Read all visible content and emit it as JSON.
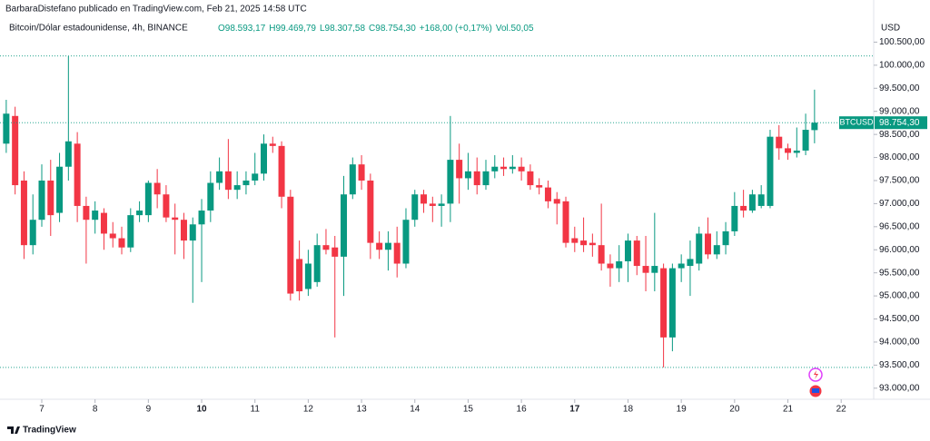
{
  "chart_data": {
    "type": "candlestick",
    "publisher_line": "BarbaraDistefano publicado en TradingView.com, Feb 21, 2025 14:58 UTC",
    "instrument": "Bitcoin/Dólar estadounidense, 4h, BINANCE",
    "ohlc_legend": {
      "open": "O98.593,17",
      "high": "H99.469,79",
      "low": "L98.307,58",
      "close": "C98.754,30",
      "change": "+168,00 (+0,17%)",
      "volume": "Vol.50,05"
    },
    "currency": "USD",
    "symbol": "BTCUSD",
    "last_price_label": "98.754,30",
    "brand": "TradingView",
    "up_color": "#089981",
    "down_color": "#f23645",
    "open": [
      98300,
      98900,
      97500,
      96100,
      96650,
      97500,
      96800,
      97800,
      98300,
      96950,
      96650,
      96800,
      96350,
      96250,
      96050,
      96750,
      96750,
      97450,
      97200,
      96700,
      96650,
      96200,
      96550,
      96850,
      97450,
      97700,
      97300,
      97400,
      97500,
      97650,
      98300,
      98250,
      97150,
      95800,
      95150,
      95300,
      96100,
      96050,
      95850,
      97200,
      97850,
      97500,
      96150,
      96000,
      96150,
      95700,
      96650,
      97200,
      97000,
      96950,
      97000,
      97950,
      97550,
      97700,
      97400,
      97700,
      97800,
      97750,
      97800,
      97700,
      97400,
      97350,
      97100,
      97050,
      96250,
      96200,
      96150,
      96100,
      95700,
      95600,
      95750,
      96200,
      95650,
      95500,
      95600,
      94100,
      95600,
      95650,
      95700,
      96350,
      95900,
      96100,
      96400,
      96950,
      96850,
      96950,
      96950,
      98450,
      98200,
      98100,
      98150,
      98593.17
    ],
    "high": [
      99250,
      99100,
      97700,
      97200,
      97850,
      97950,
      98100,
      100200,
      98550,
      97150,
      97050,
      96900,
      96600,
      96500,
      96900,
      97050,
      97500,
      97750,
      97400,
      97000,
      96800,
      96700,
      97100,
      97700,
      98000,
      98400,
      97700,
      97700,
      98100,
      98500,
      98450,
      98350,
      97300,
      96200,
      96000,
      96350,
      96450,
      96300,
      97600,
      98000,
      98050,
      97650,
      96400,
      96400,
      96500,
      96900,
      97300,
      97300,
      97150,
      97200,
      98900,
      98300,
      98100,
      98000,
      97950,
      98050,
      98000,
      98050,
      98000,
      97850,
      97550,
      97500,
      97250,
      97150,
      96500,
      96700,
      96350,
      97000,
      95900,
      96100,
      96350,
      96300,
      96300,
      96800,
      95700,
      95700,
      95900,
      96200,
      96500,
      96700,
      96400,
      96600,
      97250,
      97300,
      97300,
      97400,
      98600,
      98700,
      98300,
      98650,
      98950,
      99469.79
    ],
    "low": [
      98100,
      97200,
      95800,
      95900,
      96500,
      96300,
      96600,
      97500,
      96600,
      95700,
      96350,
      96000,
      96050,
      95900,
      95950,
      96600,
      96600,
      96900,
      96600,
      95900,
      95800,
      94850,
      95300,
      96600,
      97300,
      97100,
      97100,
      97200,
      97400,
      97500,
      98100,
      96900,
      94900,
      94900,
      95000,
      95200,
      95900,
      94100,
      95000,
      97100,
      97300,
      95800,
      95800,
      95550,
      95400,
      95600,
      96500,
      96800,
      96600,
      96500,
      96600,
      97000,
      97300,
      97200,
      97300,
      97550,
      97600,
      97650,
      97500,
      97300,
      97200,
      96900,
      96550,
      96050,
      95950,
      95950,
      95850,
      95550,
      95200,
      95300,
      95300,
      95450,
      95100,
      95100,
      93450,
      93800,
      95300,
      95000,
      95550,
      95800,
      95800,
      95900,
      96300,
      96700,
      96800,
      96900,
      96900,
      97950,
      97950,
      98000,
      98050,
      98307.58
    ],
    "close": [
      98950,
      97400,
      96100,
      96650,
      97500,
      96750,
      97800,
      98350,
      96950,
      96650,
      96850,
      96350,
      96250,
      96050,
      96750,
      96850,
      97450,
      97200,
      96700,
      96650,
      96200,
      96550,
      96850,
      97450,
      97700,
      97300,
      97400,
      97500,
      97650,
      98300,
      98250,
      97150,
      95050,
      95100,
      95700,
      96100,
      96000,
      95850,
      97200,
      97850,
      97500,
      96150,
      96000,
      96150,
      95700,
      96650,
      97200,
      97000,
      96950,
      97000,
      97950,
      97550,
      97700,
      97400,
      97700,
      97800,
      97750,
      97800,
      97700,
      97400,
      97350,
      97050,
      97000,
      96150,
      96150,
      96100,
      96100,
      95700,
      95600,
      95750,
      96200,
      95650,
      95500,
      95650,
      94100,
      95600,
      95700,
      95800,
      96350,
      95900,
      96100,
      96400,
      96950,
      96850,
      97200,
      97200,
      98450,
      98200,
      98100,
      98150,
      98600,
      98754.3
    ],
    "ylim": [
      92760,
      101020
    ],
    "yticks": [
      {
        "value": 93000,
        "label": "93.000,00"
      },
      {
        "value": 93500,
        "label": "93.500,00"
      },
      {
        "value": 94000,
        "label": "94.000,00"
      },
      {
        "value": 94500,
        "label": "94.500,00"
      },
      {
        "value": 95000,
        "label": "95.000,00"
      },
      {
        "value": 95500,
        "label": "95.500,00"
      },
      {
        "value": 96000,
        "label": "96.000,00"
      },
      {
        "value": 96500,
        "label": "96.500,00"
      },
      {
        "value": 97000,
        "label": "97.000,00"
      },
      {
        "value": 97500,
        "label": "97.500,00"
      },
      {
        "value": 98000,
        "label": "98.000,00"
      },
      {
        "value": 98500,
        "label": "98.500,00"
      },
      {
        "value": 99000,
        "label": "99.000,00"
      },
      {
        "value": 99500,
        "label": "99.500,00"
      },
      {
        "value": 100000,
        "label": "100.000,00"
      },
      {
        "value": 100500,
        "label": "100.500,00"
      }
    ],
    "xticks": [
      7,
      8,
      9,
      10,
      11,
      12,
      13,
      14,
      15,
      16,
      17,
      18,
      19,
      20,
      21,
      22
    ],
    "bold_xticks": [
      10,
      17
    ]
  }
}
